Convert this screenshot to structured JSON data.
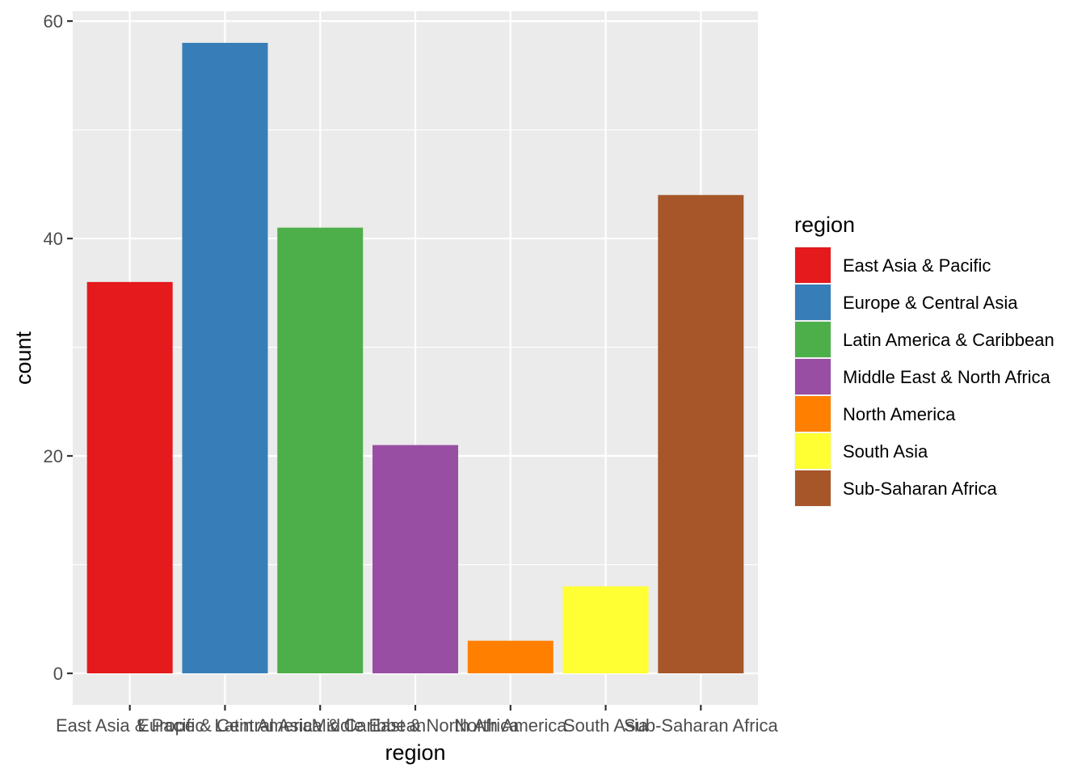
{
  "chart_data": {
    "type": "bar",
    "categories": [
      "East Asia & Pacific",
      "Europe & Central Asia",
      "Latin America & Caribbean",
      "Middle East & North Africa",
      "North America",
      "South Asia",
      "Sub-Saharan Africa"
    ],
    "values": [
      36,
      58,
      41,
      21,
      3,
      8,
      44
    ],
    "colors": [
      "#E41A1C",
      "#377EB8",
      "#4DAF4A",
      "#984EA3",
      "#FF7F00",
      "#FFFF33",
      "#A65628"
    ],
    "xlabel": "region",
    "ylabel": "count",
    "ylim": [
      -2.9,
      60.9
    ],
    "yticks": [
      0,
      20,
      40,
      60
    ],
    "yticks_minor": [
      10,
      30,
      50
    ],
    "grid": true,
    "legend": {
      "title": "region",
      "placement": "right",
      "entries": [
        "East Asia & Pacific",
        "Europe & Central Asia",
        "Latin America & Caribbean",
        "Middle East & North Africa",
        "North America",
        "South Asia",
        "Sub-Saharan Africa"
      ]
    },
    "panel_background": "#EBEBEB",
    "grid_color": "#FFFFFF",
    "tick_text_color": "#4D4D4D",
    "tick_mark_color": "#333333"
  }
}
